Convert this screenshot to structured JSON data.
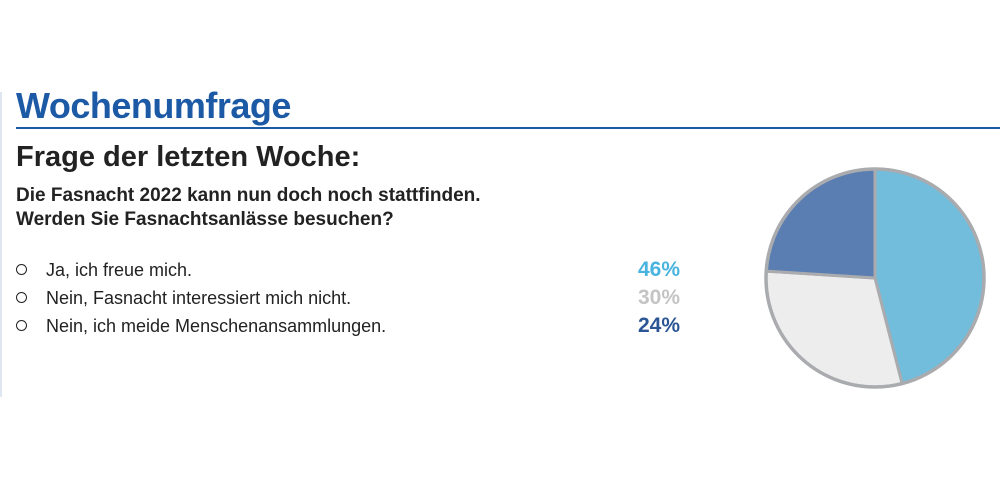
{
  "header": {
    "title": "Wochenumfrage"
  },
  "question": {
    "heading": "Frage der letzten Woche:",
    "line1": "Die Fasnacht 2022 kann nun doch noch stattfinden.",
    "line2": "Werden Sie Fasnachtsanlässe besuchen?"
  },
  "answers": [
    {
      "label": "Ja, ich freue mich.",
      "percent": "46%"
    },
    {
      "label": "Nein, Fasnacht interessiert mich nicht.",
      "percent": "30%"
    },
    {
      "label": "Nein, ich meide Menschenansammlungen.",
      "percent": "24%"
    }
  ],
  "colors": {
    "brand_blue": "#1d5aa6",
    "slice_ja": "#72bcdc",
    "slice_nein_interesse": "#ededed",
    "slice_nein_menschen": "#5a7db2",
    "pct_ja": "#47b3de",
    "pct_nein_interesse": "#c4c4c4",
    "pct_nein_menschen": "#2b5595",
    "pie_outline": "#a9abae"
  },
  "chart_data": {
    "type": "pie",
    "title": "",
    "categories": [
      "Ja, ich freue mich.",
      "Nein, Fasnacht interessiert mich nicht.",
      "Nein, ich meide Menschenansammlungen."
    ],
    "values": [
      46,
      30,
      24
    ],
    "unit": "%",
    "start_angle_deg": 0,
    "direction": "clockwise",
    "legend": "left"
  }
}
